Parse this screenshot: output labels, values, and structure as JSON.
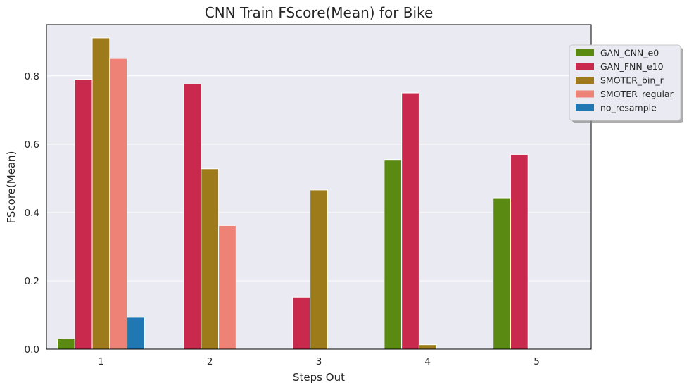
{
  "chart_data": {
    "type": "bar",
    "title": "CNN Train FScore(Mean) for Bike",
    "xlabel": "Steps Out",
    "ylabel": "FScore(Mean)",
    "categories": [
      "1",
      "2",
      "3",
      "4",
      "5"
    ],
    "ylim": [
      0,
      0.95
    ],
    "yticks": [
      0.0,
      0.2,
      0.4,
      0.6,
      0.8
    ],
    "ytick_labels": [
      "0.0",
      "0.2",
      "0.4",
      "0.6",
      "0.8"
    ],
    "grid": true,
    "legend_position": "upper-right, outside plot",
    "series": [
      {
        "name": "GAN_CNN_e0",
        "color": "#5b8a12",
        "values": [
          0.03,
          0,
          0,
          0.555,
          0.443
        ]
      },
      {
        "name": "GAN_FNN_e10",
        "color": "#c8294c",
        "values": [
          0.79,
          0.776,
          0.152,
          0.75,
          0.57
        ]
      },
      {
        "name": "SMOTER_bin_r",
        "color": "#9e7b1a",
        "values": [
          0.911,
          0.528,
          0.466,
          0.013,
          0
        ]
      },
      {
        "name": "SMOTER_regular",
        "color": "#ee8276",
        "values": [
          0.851,
          0.362,
          0,
          0,
          0
        ]
      },
      {
        "name": "no_resample",
        "color": "#1f77b4",
        "values": [
          0.093,
          0,
          0,
          0,
          0
        ]
      }
    ]
  }
}
